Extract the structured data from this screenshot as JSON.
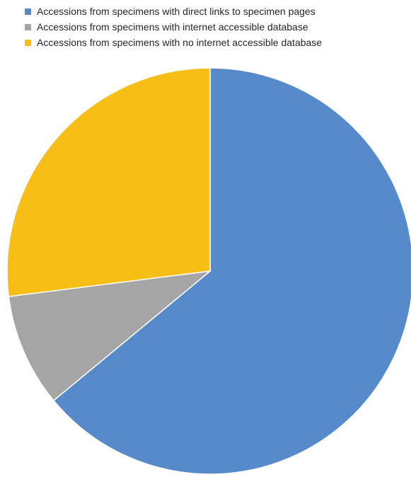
{
  "chart_data": {
    "type": "pie",
    "title": "",
    "slices": [
      {
        "label": "Accessions from specimens with direct links to specimen pages",
        "value": 64,
        "color": "#578ACA"
      },
      {
        "label": "Accessions from specimens with internet accessible database",
        "value": 9,
        "color": "#A5A5A5"
      },
      {
        "label": "Accessions from specimens with no internet accessible database",
        "value": 27,
        "color": "#F9BE16"
      }
    ],
    "start_angle": "12 o'clock",
    "direction": "clockwise",
    "legend_position": "top"
  }
}
